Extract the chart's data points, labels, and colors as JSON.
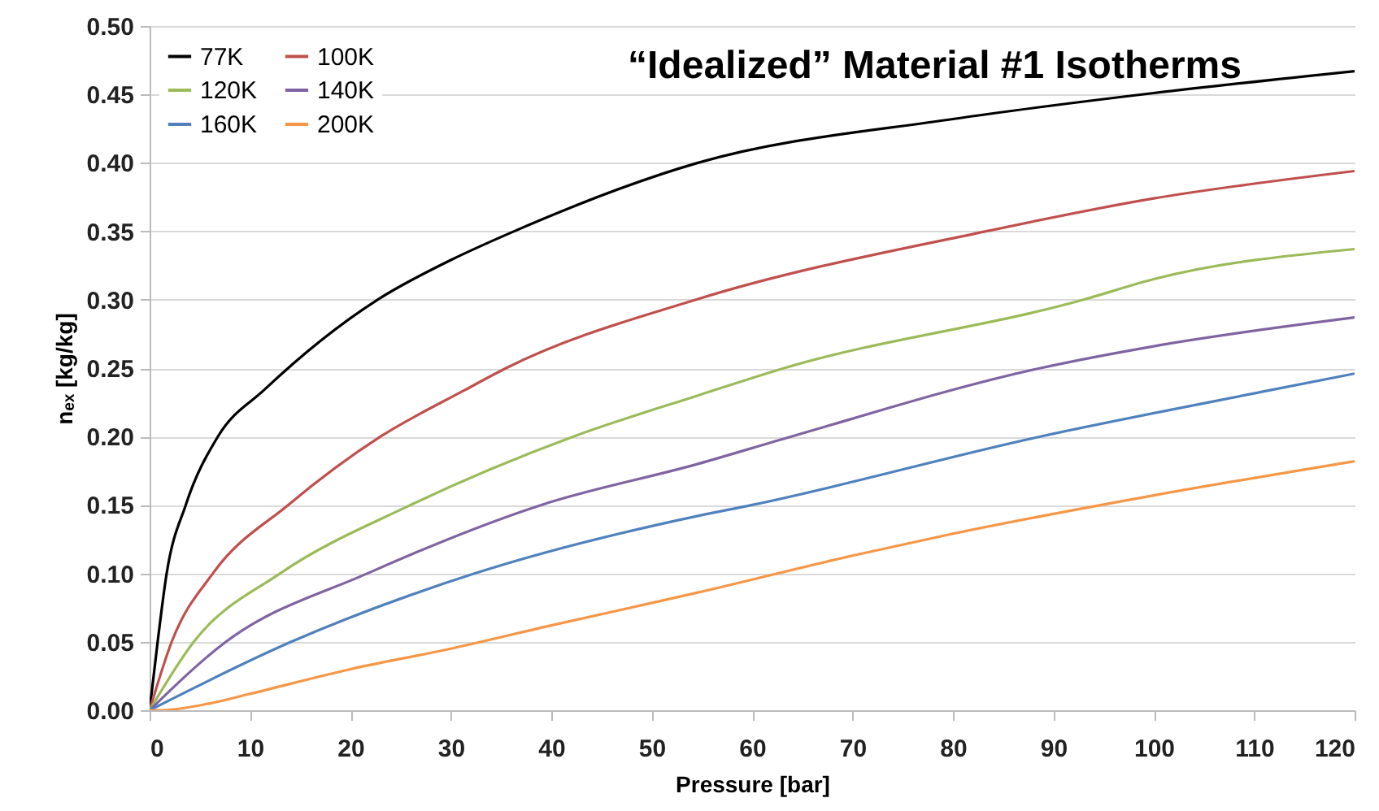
{
  "chart_data": {
    "type": "line",
    "title": "“Idealized” Material #1 Isotherms",
    "xlabel": "Pressure [bar]",
    "ylabel": "nₑₓ [kg/kg]",
    "xlim": [
      0,
      120
    ],
    "xticks": [
      0,
      10,
      20,
      30,
      40,
      50,
      60,
      70,
      80,
      90,
      100,
      110,
      120
    ],
    "ylim": [
      0,
      0.5
    ],
    "yticks": [
      {
        "value": 0,
        "label": "0.00"
      },
      {
        "value": 0.05,
        "label": "0.05"
      },
      {
        "value": 0.1,
        "label": "0.10"
      },
      {
        "value": 0.15,
        "label": "0.15"
      },
      {
        "value": 0.2,
        "label": "0.20"
      },
      {
        "value": 0.25,
        "label": "0.25"
      },
      {
        "value": 0.3,
        "label": "0.30"
      },
      {
        "value": 0.35,
        "label": "0.35"
      },
      {
        "value": 0.4,
        "label": "0.40"
      },
      {
        "value": 0.45,
        "label": "0.45"
      },
      {
        "value": 0.5,
        "label": "0.50"
      }
    ],
    "grid": "y",
    "legend": "top left",
    "line_style": "solid",
    "marker": "none",
    "series": [
      {
        "name": "77K",
        "color": "#000000",
        "x": [
          0,
          0.8,
          1.7,
          3.6,
          6.8,
          11.4,
          22.7,
          30,
          36.3,
          54.6,
          80,
          100,
          120
        ],
        "values": [
          0,
          0.05,
          0.1,
          0.15,
          0.2,
          0.234,
          0.3,
          0.329,
          0.35,
          0.4,
          0.432,
          0.451,
          0.467
        ]
      },
      {
        "name": "100K",
        "color": "#c0504d",
        "x": [
          0,
          2.2,
          6.3,
          13.8,
          23,
          31.4,
          35.5,
          54.4,
          83.3,
          100,
          120
        ],
        "values": [
          0,
          0.05,
          0.1,
          0.15,
          0.2,
          0.234,
          0.25,
          0.3,
          0.35,
          0.374,
          0.394
        ]
      },
      {
        "name": "120K",
        "color": "#9bbb59",
        "x": [
          0,
          4.4,
          13,
          26,
          42.2,
          54.6,
          63.2,
          93,
          100,
          120
        ],
        "values": [
          0,
          0.05,
          0.1,
          0.15,
          0.2,
          0.23,
          0.25,
          0.3,
          0.315,
          0.337
        ]
      },
      {
        "name": "140K",
        "color": "#8064a2",
        "x": [
          0,
          7.6,
          21.7,
          39,
          54.6,
          63.9,
          88.7,
          100,
          120
        ],
        "values": [
          0,
          0.05,
          0.1,
          0.15,
          0.18,
          0.2,
          0.25,
          0.266,
          0.287
        ]
      },
      {
        "name": "160K",
        "color": "#4f81bd",
        "x": [
          0,
          14.1,
          32.4,
          54.6,
          60,
          88.7,
          111.7,
          120
        ],
        "values": [
          0,
          0.05,
          0.1,
          0.142,
          0.15,
          0.2,
          0.234,
          0.246
        ]
      },
      {
        "name": "200K",
        "color": "#f79646",
        "x": [
          0,
          1,
          6,
          10,
          20,
          30,
          40,
          54.6,
          70,
          80,
          100,
          120
        ],
        "values": [
          0,
          0,
          0.005,
          0.012,
          0.03,
          0.045,
          0.062,
          0.086,
          0.113,
          0.129,
          0.157,
          0.182
        ]
      }
    ]
  }
}
